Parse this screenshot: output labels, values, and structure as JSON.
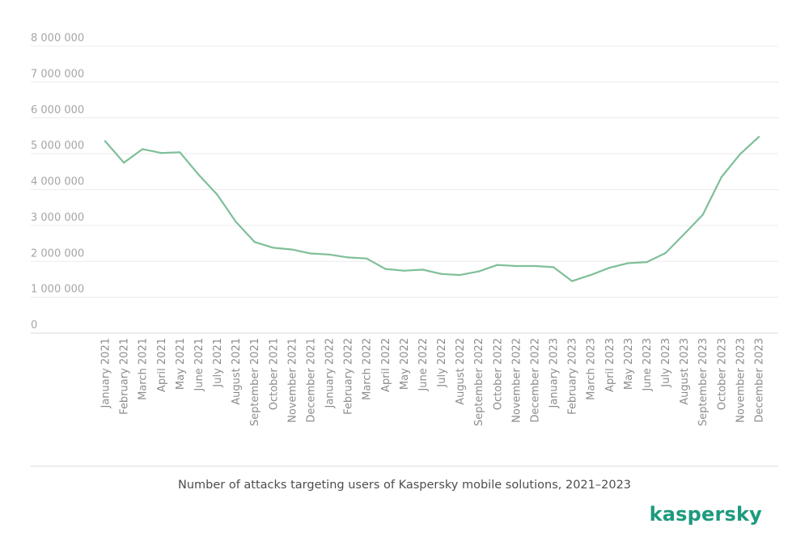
{
  "chart_data": {
    "type": "line",
    "title": "Number of attacks targeting users of Kaspersky mobile solutions, 2021–2023",
    "xlabel": "",
    "ylabel": "",
    "ylim": [
      0,
      8000000
    ],
    "yticks": [
      0,
      1000000,
      2000000,
      3000000,
      4000000,
      5000000,
      6000000,
      7000000,
      8000000
    ],
    "ytick_labels": [
      "0",
      "1 000 000",
      "2 000 000",
      "3 000 000",
      "4 000 000",
      "5 000 000",
      "6 000 000",
      "7 000 000",
      "8 000 000"
    ],
    "grid": true,
    "legend": "none",
    "categories": [
      "January 2021",
      "February 2021",
      "March 2021",
      "April 2021",
      "May 2021",
      "June 2021",
      "July 2021",
      "August 2021",
      "September 2021",
      "October 2021",
      "November 2021",
      "December 2021",
      "January 2022",
      "February 2022",
      "March 2022",
      "April 2022",
      "May 2022",
      "June 2022",
      "July 2022",
      "August 2022",
      "September 2022",
      "October 2022",
      "November 2022",
      "December 2022",
      "January 2023",
      "February 2023",
      "March 2023",
      "April 2023",
      "May 2023",
      "June 2023",
      "July 2023",
      "August 2023",
      "September 2023",
      "October 2023",
      "November 2023",
      "December 2023"
    ],
    "series": [
      {
        "color": "#7fbf99",
        "values": [
          5350000,
          4750000,
          5130000,
          5020000,
          5040000,
          4420000,
          3860000,
          3100000,
          2540000,
          2380000,
          2330000,
          2220000,
          2190000,
          2110000,
          2080000,
          1790000,
          1740000,
          1770000,
          1650000,
          1620000,
          1720000,
          1900000,
          1870000,
          1870000,
          1840000,
          1450000,
          1620000,
          1820000,
          1950000,
          1980000,
          2230000,
          2760000,
          3300000,
          4350000,
          4990000,
          5470000
        ]
      }
    ]
  },
  "caption": "Number of attacks targeting users of Kaspersky mobile solutions, 2021–2023",
  "brand": {
    "logo_text": "kaspersky",
    "color": "#1d9a7e"
  }
}
